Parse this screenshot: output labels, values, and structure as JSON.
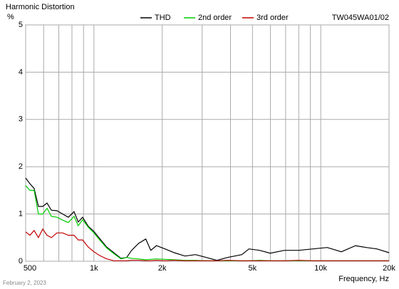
{
  "chart_data": {
    "type": "line",
    "title": "Harmonic Distortion",
    "subtitle": "TW045WA01/02",
    "y_label": "%",
    "x_label": "Frequency, Hz",
    "footer": "February 2, 2023",
    "x_log": true,
    "grid": true,
    "legend": "top",
    "xlim": [
      500,
      20000
    ],
    "xticks": [
      500,
      {
        "value": 1000,
        "label": "1k"
      },
      {
        "value": 2000,
        "label": "2k"
      },
      {
        "value": 5000,
        "label": "5k"
      },
      {
        "value": 10000,
        "label": "10k"
      },
      {
        "value": 20000,
        "label": "20k"
      }
    ],
    "x_minor_grid": [
      600,
      700,
      800,
      900,
      3000,
      4000,
      6000,
      7000,
      8000,
      9000
    ],
    "ylim": [
      0,
      5
    ],
    "yticks": [
      0,
      1,
      2,
      3,
      4,
      5
    ],
    "x": [
      500,
      522,
      545,
      569,
      595,
      621,
      649,
      687,
      728,
      771,
      817,
      853,
      891,
      944,
      1000,
      1060,
      1139,
      1224,
      1316,
      1394,
      1466,
      1575,
      1693,
      1781,
      1887,
      2058,
      2260,
      2519,
      2807,
      3128,
      3485,
      3883,
      4487,
      4823,
      5374,
      5988,
      6918,
      7993,
      9238,
      10672,
      12327,
      14238,
      15868,
      17683,
      20000
    ],
    "series": [
      {
        "name": "THD",
        "color": "#000000",
        "values": [
          1.76,
          1.64,
          1.54,
          1.16,
          1.16,
          1.23,
          1.08,
          1.07,
          1.0,
          0.93,
          1.05,
          0.83,
          0.93,
          0.74,
          0.63,
          0.48,
          0.3,
          0.18,
          0.06,
          0.08,
          0.23,
          0.38,
          0.47,
          0.23,
          0.33,
          0.26,
          0.18,
          0.11,
          0.14,
          0.08,
          0.02,
          0.08,
          0.14,
          0.26,
          0.23,
          0.17,
          0.23,
          0.23,
          0.26,
          0.29,
          0.2,
          0.33,
          0.29,
          0.26,
          0.18
        ]
      },
      {
        "name": "2nd order",
        "color": "#00cc00",
        "values": [
          1.6,
          1.5,
          1.5,
          1.0,
          1.0,
          1.12,
          0.95,
          0.93,
          0.87,
          0.82,
          0.95,
          0.75,
          0.88,
          0.72,
          0.6,
          0.45,
          0.28,
          0.16,
          0.05,
          0.08,
          0.06,
          0.05,
          0.03,
          0.04,
          0.05,
          0.04,
          0.03,
          0.02,
          0.02,
          0.01,
          0.01,
          0.01,
          0.01,
          0.01,
          0.02,
          0.01,
          0.01,
          0.01,
          0.01,
          0.01,
          0.01,
          0.01,
          0.01,
          0.01,
          0.01
        ]
      },
      {
        "name": "3rd order",
        "color": "#c00000",
        "values": [
          0.62,
          0.55,
          0.65,
          0.5,
          0.68,
          0.55,
          0.5,
          0.6,
          0.6,
          0.55,
          0.55,
          0.45,
          0.45,
          0.3,
          0.2,
          0.12,
          0.05,
          0.01,
          0.01,
          0.01,
          0.02,
          0.02,
          0.01,
          0.01,
          0.02,
          0.01,
          0.02,
          0.01,
          0.01,
          0.01,
          0.01,
          0.02,
          0.01,
          0.01,
          0.01,
          0.01,
          0.01,
          0.02,
          0.01,
          0.01,
          0.01,
          0.01,
          0.01,
          0.01,
          0.01
        ]
      }
    ]
  }
}
